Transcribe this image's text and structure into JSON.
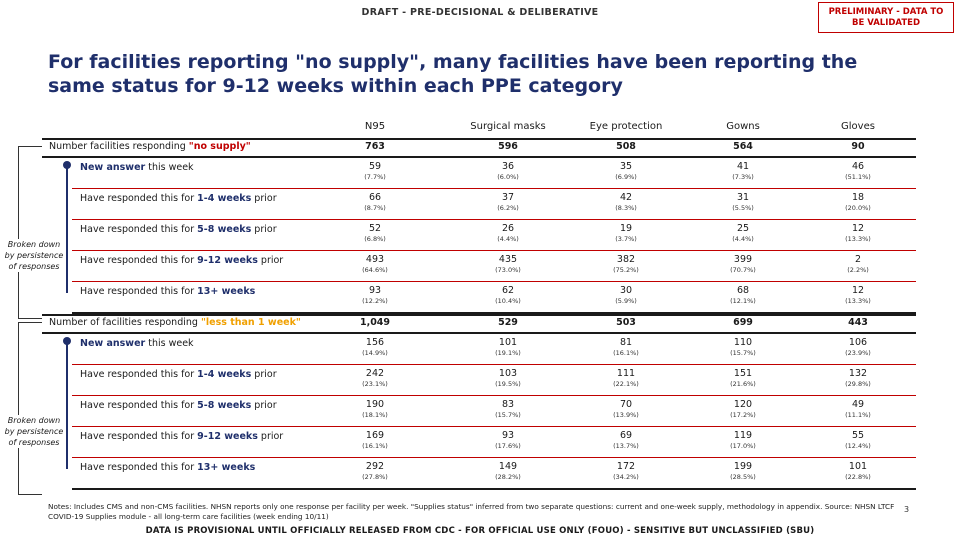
{
  "header": {
    "draft_label": "DRAFT - PRE-DECISIONAL & DELIBERATIVE",
    "preliminary_badge": "PRELIMINARY - DATA TO BE VALIDATED"
  },
  "title": "For facilities reporting \"no supply\", many facilities have been reporting the same status for 9-12 weeks within each PPE category",
  "columns": [
    "N95",
    "Surgical masks",
    "Eye protection",
    "Gowns",
    "Gloves"
  ],
  "bracket_label": "Broken down by persistence of responses",
  "sections": [
    {
      "label_prefix": "Number facilities responding ",
      "label_highlight": "\"no supply\"",
      "totals": [
        "763",
        "596",
        "508",
        "564",
        "90"
      ],
      "rows": [
        {
          "label_bold": "New answer",
          "label_post": " this week",
          "label_pre": "",
          "values": [
            [
              "59",
              "(7.7%)"
            ],
            [
              "36",
              "(6.0%)"
            ],
            [
              "35",
              "(6.9%)"
            ],
            [
              "41",
              "(7.3%)"
            ],
            [
              "46",
              "(51.1%)"
            ]
          ]
        },
        {
          "label_pre": "Have responded this for ",
          "label_bold": "1-4 weeks",
          "label_post": " prior",
          "values": [
            [
              "66",
              "(8.7%)"
            ],
            [
              "37",
              "(6.2%)"
            ],
            [
              "42",
              "(8.3%)"
            ],
            [
              "31",
              "(5.5%)"
            ],
            [
              "18",
              "(20.0%)"
            ]
          ]
        },
        {
          "label_pre": "Have responded this for ",
          "label_bold": "5-8 weeks",
          "label_post": " prior",
          "values": [
            [
              "52",
              "(6.8%)"
            ],
            [
              "26",
              "(4.4%)"
            ],
            [
              "19",
              "(3.7%)"
            ],
            [
              "25",
              "(4.4%)"
            ],
            [
              "12",
              "(13.3%)"
            ]
          ]
        },
        {
          "label_pre": "Have responded this for ",
          "label_bold": "9-12 weeks",
          "label_post": " prior",
          "values": [
            [
              "493",
              "(64.6%)"
            ],
            [
              "435",
              "(73.0%)"
            ],
            [
              "382",
              "(75.2%)"
            ],
            [
              "399",
              "(70.7%)"
            ],
            [
              "2",
              "(2.2%)"
            ]
          ]
        },
        {
          "label_pre": "Have responded this for ",
          "label_bold": "13+ weeks",
          "label_post": "",
          "values": [
            [
              "93",
              "(12.2%)"
            ],
            [
              "62",
              "(10.4%)"
            ],
            [
              "30",
              "(5.9%)"
            ],
            [
              "68",
              "(12.1%)"
            ],
            [
              "12",
              "(13.3%)"
            ]
          ]
        }
      ]
    },
    {
      "label_prefix": "Number of facilities responding ",
      "label_highlight": "\"less than 1 week\"",
      "totals": [
        "1,049",
        "529",
        "503",
        "699",
        "443"
      ],
      "rows": [
        {
          "label_bold": "New answer",
          "label_post": " this week",
          "label_pre": "",
          "values": [
            [
              "156",
              "(14.9%)"
            ],
            [
              "101",
              "(19.1%)"
            ],
            [
              "81",
              "(16.1%)"
            ],
            [
              "110",
              "(15.7%)"
            ],
            [
              "106",
              "(23.9%)"
            ]
          ]
        },
        {
          "label_pre": "Have responded this for ",
          "label_bold": "1-4 weeks",
          "label_post": " prior",
          "values": [
            [
              "242",
              "(23.1%)"
            ],
            [
              "103",
              "(19.5%)"
            ],
            [
              "111",
              "(22.1%)"
            ],
            [
              "151",
              "(21.6%)"
            ],
            [
              "132",
              "(29.8%)"
            ]
          ]
        },
        {
          "label_pre": "Have responded this for ",
          "label_bold": "5-8 weeks",
          "label_post": " prior",
          "values": [
            [
              "190",
              "(18.1%)"
            ],
            [
              "83",
              "(15.7%)"
            ],
            [
              "70",
              "(13.9%)"
            ],
            [
              "120",
              "(17.2%)"
            ],
            [
              "49",
              "(11.1%)"
            ]
          ]
        },
        {
          "label_pre": "Have responded this for ",
          "label_bold": "9-12 weeks",
          "label_post": " prior",
          "values": [
            [
              "169",
              "(16.1%)"
            ],
            [
              "93",
              "(17.6%)"
            ],
            [
              "69",
              "(13.7%)"
            ],
            [
              "119",
              "(17.0%)"
            ],
            [
              "55",
              "(12.4%)"
            ]
          ]
        },
        {
          "label_pre": "Have responded this for ",
          "label_bold": "13+ weeks",
          "label_post": "",
          "values": [
            [
              "292",
              "(27.8%)"
            ],
            [
              "149",
              "(28.2%)"
            ],
            [
              "172",
              "(34.2%)"
            ],
            [
              "199",
              "(28.5%)"
            ],
            [
              "101",
              "(22.8%)"
            ]
          ]
        }
      ]
    }
  ],
  "notes": "Notes: Includes CMS and non-CMS facilities. NHSN reports only one response per facility per week. \"Supplies status\" inferred from two separate questions: current and one-week supply, methodology in appendix. Source: NHSN LTCF COVID-19 Supplies module - all long-term care facilities (week ending 10/11)",
  "page_number": "3",
  "footer": "DATA IS PROVISIONAL UNTIL OFFICIALLY RELEASED FROM CDC - FOR OFFICIAL USE ONLY (FOUO) - SENSITIVE BUT UNCLASSIFIED (SBU)"
}
